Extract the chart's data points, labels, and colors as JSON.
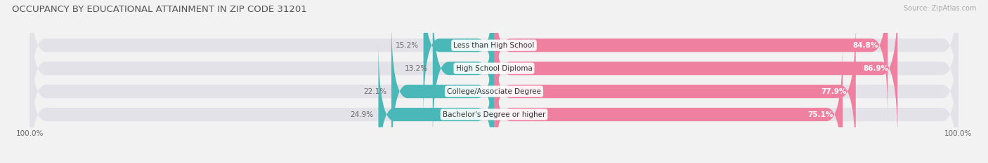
{
  "title": "OCCUPANCY BY EDUCATIONAL ATTAINMENT IN ZIP CODE 31201",
  "source": "Source: ZipAtlas.com",
  "categories": [
    "Less than High School",
    "High School Diploma",
    "College/Associate Degree",
    "Bachelor's Degree or higher"
  ],
  "owner_pct": [
    15.2,
    13.2,
    22.1,
    24.9
  ],
  "renter_pct": [
    84.8,
    86.9,
    77.9,
    75.1
  ],
  "owner_color": "#4ab8b8",
  "renter_color": "#f080a0",
  "bg_color": "#f2f2f2",
  "bar_bg_color": "#e2e2e8",
  "title_fontsize": 9.5,
  "label_fontsize": 7.5,
  "tick_fontsize": 7.5,
  "source_fontsize": 7
}
